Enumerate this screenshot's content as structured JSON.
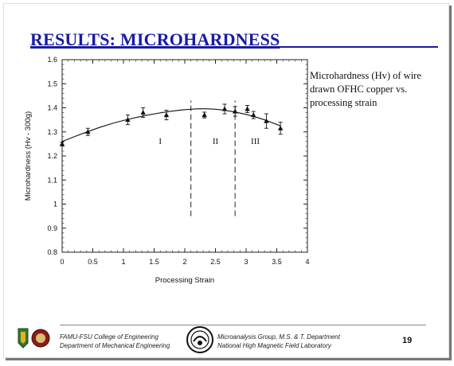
{
  "slide": {
    "title": "RESULTS: MICROHARDNESS",
    "caption": "Microhardness (Hv) of wire drawn OFHC copper vs. processing strain",
    "page_number": "19",
    "footer_left_line1": "FAMU-FSU College of Engineering",
    "footer_left_line2": "Department of Mechanical Engineering",
    "footer_right_line1": "Microanalysis Group, M.S. & T. Department",
    "footer_right_line2": "National High Magnetic Field Laboratory"
  },
  "chart_data": {
    "type": "scatter",
    "title": "",
    "xlabel": "Processing Strain",
    "ylabel": "Microhardness (Hv - 300g)",
    "xlim": [
      0,
      4
    ],
    "ylim": [
      0.8,
      1.6
    ],
    "xticks": [
      0,
      0.5,
      1,
      1.5,
      2,
      2.5,
      3,
      3.5,
      4
    ],
    "xtick_labels": [
      "0",
      "0.5",
      "1",
      "1.5",
      "2",
      "2.5",
      "3",
      "3.5",
      "4"
    ],
    "yticks": [
      0.8,
      0.9,
      1.0,
      1.1,
      1.2,
      1.3,
      1.4,
      1.5,
      1.6
    ],
    "ytick_labels": [
      "0.8",
      "0.9",
      "1",
      "1.1",
      "1.2",
      "1.3",
      "1.4",
      "1.5",
      "1.6"
    ],
    "grid": false,
    "points": {
      "x": [
        0,
        0.42,
        1.07,
        1.32,
        1.7,
        2.32,
        2.65,
        2.82,
        3.02,
        3.12,
        3.33,
        3.56
      ],
      "y": [
        1.25,
        1.3,
        1.35,
        1.38,
        1.37,
        1.37,
        1.395,
        1.385,
        1.395,
        1.37,
        1.345,
        1.315
      ],
      "err": [
        0.008,
        0.015,
        0.02,
        0.02,
        0.02,
        0.012,
        0.02,
        0.02,
        0.015,
        0.015,
        0.03,
        0.025
      ]
    },
    "fit_curve": {
      "x": [
        0,
        0.4,
        0.8,
        1.2,
        1.6,
        2.0,
        2.4,
        2.8,
        3.2,
        3.56
      ],
      "y": [
        1.26,
        1.3,
        1.335,
        1.36,
        1.38,
        1.393,
        1.398,
        1.385,
        1.36,
        1.325
      ]
    },
    "dividers": [
      {
        "x": 2.1,
        "y_range": [
          0.95,
          1.43
        ]
      },
      {
        "x": 2.82,
        "y_range": [
          0.95,
          1.43
        ]
      }
    ],
    "region_labels": [
      {
        "text": "I",
        "x": 1.6,
        "y": 1.25
      },
      {
        "text": "II",
        "x": 2.5,
        "y": 1.25
      },
      {
        "text": "III",
        "x": 3.15,
        "y": 1.25
      }
    ]
  }
}
